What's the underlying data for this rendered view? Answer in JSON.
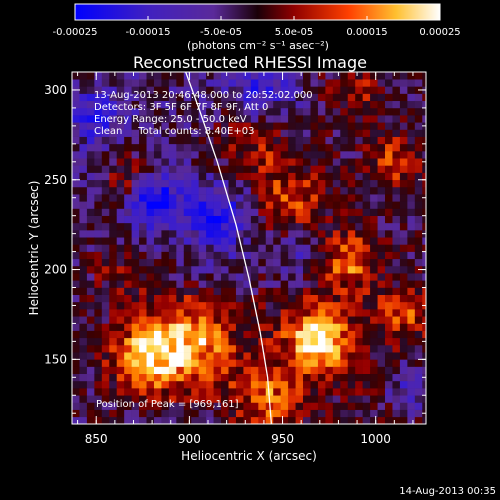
{
  "chart_data": {
    "type": "heatmap",
    "title": "Reconstructed RHESSI Image",
    "xlabel": "Heliocentric X (arcsec)",
    "ylabel": "Heliocentric Y (arcsec)",
    "xlim": [
      837,
      1027
    ],
    "ylim": [
      114,
      310
    ],
    "x_ticks": [
      850,
      900,
      950,
      1000
    ],
    "y_ticks": [
      150,
      200,
      250,
      300
    ],
    "colorbar": {
      "range": [
        -0.00025,
        0.00025
      ],
      "tick_labels": [
        "-0.00025",
        "-0.00015",
        "-5.0e-05",
        "5.0e-05",
        "0.00015",
        "0.00025"
      ],
      "tick_values": [
        -0.00025,
        -0.00015,
        -5e-05,
        5e-05,
        0.00015,
        0.00025
      ],
      "units_label": "(photons cm⁻² s⁻¹ asec⁻²)",
      "colors": [
        "#0000ff",
        "#5a2a9a",
        "#200010",
        "#900000",
        "#ff5000",
        "#ffd040",
        "#ffffff"
      ]
    },
    "annotations": [
      "13-Aug-2013 20:46:48.000 to 20:52:02.000",
      "Detectors: 3F 5F 6F 7F 8F 9F, Att 0",
      "Energy Range: 25.0 - 50.0 keV",
      "Clean     Total counts: 8.40E+03"
    ],
    "peak_label": "Position of Peak = [969,161]",
    "peak": [
      969,
      161
    ],
    "limb_curve": [
      [
        898,
        310
      ],
      [
        905,
        290
      ],
      [
        915,
        260
      ],
      [
        925,
        225
      ],
      [
        932,
        195
      ],
      [
        938,
        165
      ],
      [
        942,
        140
      ],
      [
        944,
        114
      ]
    ],
    "hotspots": [
      {
        "x": 969,
        "y": 161,
        "amp": 1.0,
        "r": 12
      },
      {
        "x": 900,
        "y": 160,
        "amp": 0.85,
        "r": 18
      },
      {
        "x": 875,
        "y": 150,
        "amp": 0.7,
        "r": 14
      },
      {
        "x": 870,
        "y": 250,
        "amp": 0.6,
        "r": 10
      },
      {
        "x": 985,
        "y": 205,
        "amp": 0.7,
        "r": 12
      },
      {
        "x": 1010,
        "y": 260,
        "amp": 0.55,
        "r": 10
      },
      {
        "x": 955,
        "y": 240,
        "amp": 0.5,
        "r": 14
      },
      {
        "x": 930,
        "y": 270,
        "amp": 0.45,
        "r": 14
      },
      {
        "x": 940,
        "y": 130,
        "amp": 0.55,
        "r": 14
      },
      {
        "x": 1015,
        "y": 175,
        "amp": 0.45,
        "r": 10
      },
      {
        "x": 860,
        "y": 200,
        "amp": 0.35,
        "r": 12
      },
      {
        "x": 990,
        "y": 300,
        "amp": 0.4,
        "r": 10
      }
    ],
    "coldspots": [
      {
        "x": 880,
        "y": 240,
        "amp": -0.9,
        "r": 10
      },
      {
        "x": 915,
        "y": 230,
        "amp": -0.6,
        "r": 12
      },
      {
        "x": 850,
        "y": 285,
        "amp": -0.5,
        "r": 10
      },
      {
        "x": 940,
        "y": 300,
        "amp": -0.5,
        "r": 12
      },
      {
        "x": 1020,
        "y": 135,
        "amp": -0.5,
        "r": 10
      },
      {
        "x": 960,
        "y": 210,
        "amp": -0.4,
        "r": 10
      }
    ]
  },
  "footer": {
    "timestamp": "14-Aug-2013 00:35"
  }
}
